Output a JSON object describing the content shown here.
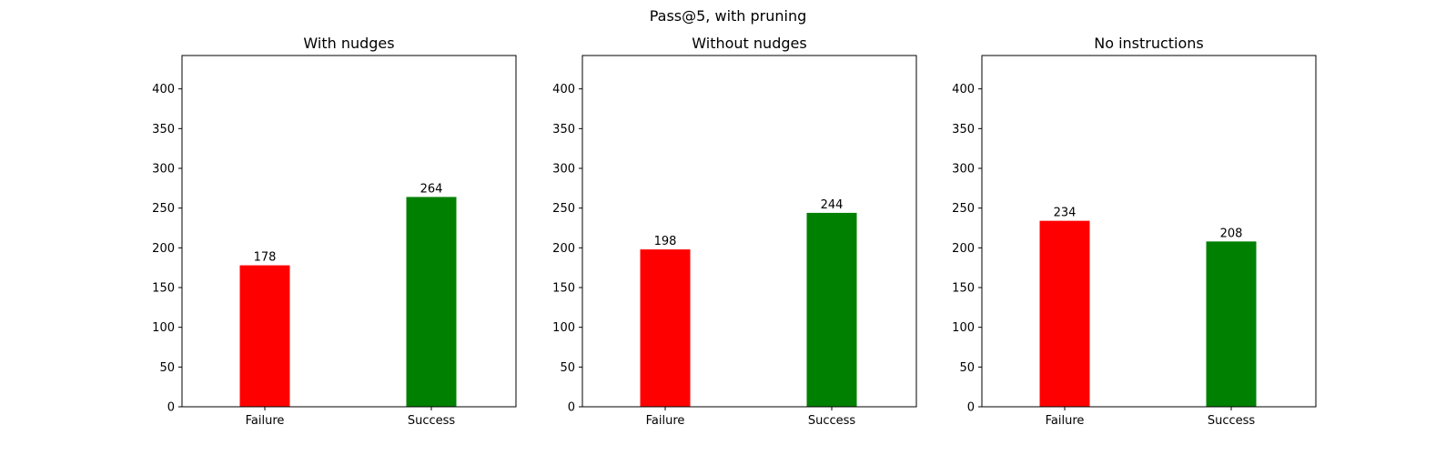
{
  "figure": {
    "suptitle": "Pass@5, with pruning"
  },
  "chart_data": [
    {
      "type": "bar",
      "title": "With nudges",
      "categories": [
        "Failure",
        "Success"
      ],
      "values": [
        178,
        264
      ],
      "colors": [
        "#ff0000",
        "#008000"
      ],
      "data_labels": [
        "178",
        "264"
      ],
      "yticks": [
        0,
        50,
        100,
        150,
        200,
        250,
        300,
        350,
        400
      ],
      "ylim": [
        0,
        442
      ],
      "grid": false
    },
    {
      "type": "bar",
      "title": "Without nudges",
      "categories": [
        "Failure",
        "Success"
      ],
      "values": [
        198,
        244
      ],
      "colors": [
        "#ff0000",
        "#008000"
      ],
      "data_labels": [
        "198",
        "244"
      ],
      "yticks": [
        0,
        50,
        100,
        150,
        200,
        250,
        300,
        350,
        400
      ],
      "ylim": [
        0,
        442
      ],
      "grid": false
    },
    {
      "type": "bar",
      "title": "No instructions",
      "categories": [
        "Failure",
        "Success"
      ],
      "values": [
        234,
        208
      ],
      "colors": [
        "#ff0000",
        "#008000"
      ],
      "data_labels": [
        "234",
        "208"
      ],
      "yticks": [
        0,
        50,
        100,
        150,
        200,
        250,
        300,
        350,
        400
      ],
      "ylim": [
        0,
        442
      ],
      "grid": false
    }
  ]
}
